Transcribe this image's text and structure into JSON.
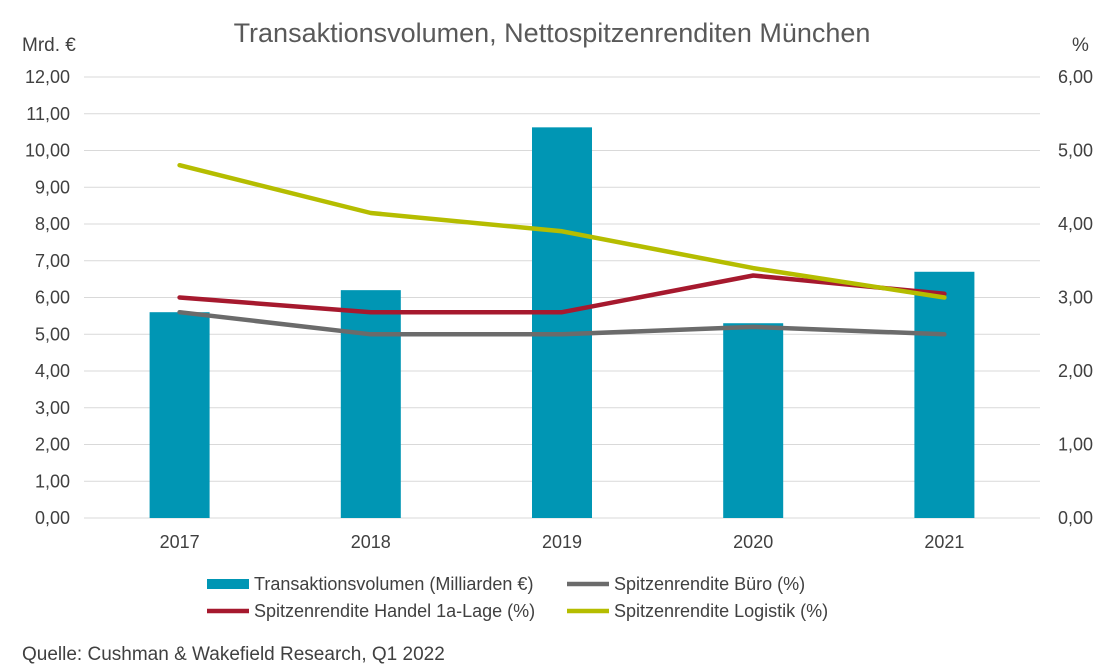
{
  "chart_data": {
    "type": "bar",
    "title": "Transaktionsvolumen, Nettospitzenrenditen München",
    "ylabel_left": "Mrd. €",
    "ylabel_right": "%",
    "categories": [
      "2017",
      "2018",
      "2019",
      "2020",
      "2021"
    ],
    "ylim_left": [
      0,
      12
    ],
    "ylim_right": [
      0,
      6
    ],
    "yticks_left": [
      "0,00",
      "1,00",
      "2,00",
      "3,00",
      "4,00",
      "5,00",
      "6,00",
      "7,00",
      "8,00",
      "9,00",
      "10,00",
      "11,00",
      "12,00"
    ],
    "yticks_right": [
      "0,00",
      "1,00",
      "2,00",
      "3,00",
      "4,00",
      "5,00",
      "6,00"
    ],
    "grid": true,
    "legend_position": "bottom",
    "series": [
      {
        "name": "Transaktionsvolumen (Milliarden €)",
        "kind": "bar",
        "axis": "left",
        "color": "#0096b4",
        "values": [
          5.6,
          6.2,
          10.63,
          5.3,
          6.7
        ]
      },
      {
        "name": "Spitzenrendite Büro (%)",
        "kind": "line",
        "axis": "right",
        "color": "#6b6b6b",
        "values": [
          2.8,
          2.5,
          2.5,
          2.6,
          2.5
        ]
      },
      {
        "name": "Spitzenrendite Handel 1a-Lage (%)",
        "kind": "line",
        "axis": "right",
        "color": "#a6192e",
        "values": [
          3.0,
          2.8,
          2.8,
          3.3,
          3.05
        ]
      },
      {
        "name": "Spitzenrendite Logistik  (%)",
        "kind": "line",
        "axis": "right",
        "color": "#b5bd00",
        "values": [
          4.8,
          4.15,
          3.9,
          3.4,
          3.0
        ]
      }
    ],
    "source": "Quelle: Cushman & Wakefield Research, Q1 2022"
  }
}
